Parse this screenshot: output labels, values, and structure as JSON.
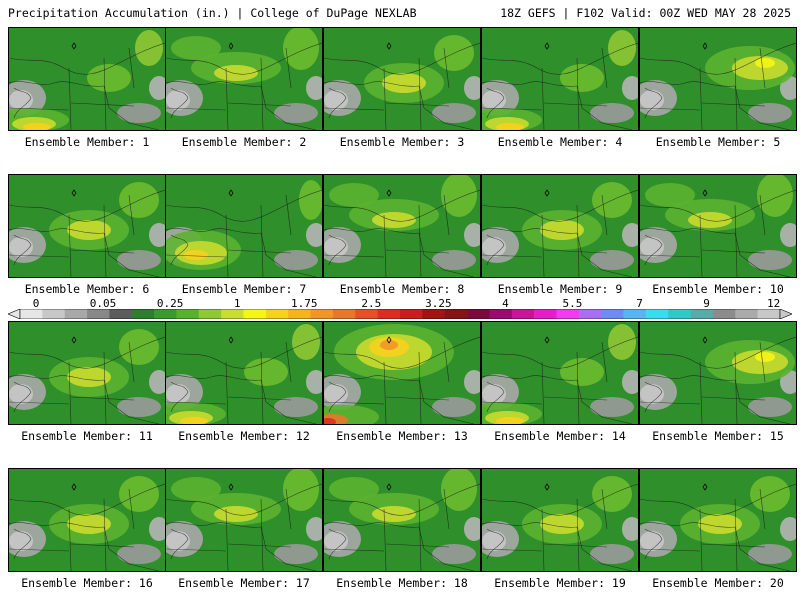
{
  "header": {
    "title_left": "Precipitation Accumulation (in.) | College of DuPage NEXLAB",
    "title_right": "18Z GEFS | F102 Valid: 00Z WED MAY 28 2025"
  },
  "colorbar": {
    "labels": [
      "0",
      "0.05",
      "0.25",
      "1",
      "1.75",
      "2.5",
      "3.25",
      "4",
      "5.5",
      "7",
      "9",
      "12"
    ],
    "colors": [
      "#e6e6e6",
      "#c8c8c8",
      "#a8a8a8",
      "#888888",
      "#5c5c5c",
      "#2f7d2f",
      "#3a9a30",
      "#58b02f",
      "#8ec835",
      "#c8dc32",
      "#f5f516",
      "#f5d21e",
      "#f5b41e",
      "#f09628",
      "#e6782d",
      "#e65028",
      "#dc2d23",
      "#c81e1e",
      "#a01414",
      "#821414",
      "#7a0a3c",
      "#9b0a6e",
      "#c81496",
      "#e61ec8",
      "#f03cf0",
      "#aa6ef0",
      "#6e8cf0",
      "#5ab4f0",
      "#3cdcf0",
      "#32c8c8",
      "#5aaaaa",
      "#8c8c8c",
      "#aaaaaa",
      "#c8c8c8"
    ]
  },
  "panels": [
    {
      "label": "Ensemble Member: 1",
      "wet": "south"
    },
    {
      "label": "Ensemble Member: 2",
      "wet": "north"
    },
    {
      "label": "Ensemble Member: 3",
      "wet": "center"
    },
    {
      "label": "Ensemble Member: 4",
      "wet": "south"
    },
    {
      "label": "Ensemble Member: 5",
      "wet": "northeast"
    },
    {
      "label": "Ensemble Member: 6",
      "wet": "center"
    },
    {
      "label": "Ensemble Member: 7",
      "wet": "southwest"
    },
    {
      "label": "Ensemble Member: 8",
      "wet": "north"
    },
    {
      "label": "Ensemble Member: 9",
      "wet": "center"
    },
    {
      "label": "Ensemble Member: 10",
      "wet": "north"
    },
    {
      "label": "Ensemble Member: 11",
      "wet": "center"
    },
    {
      "label": "Ensemble Member: 12",
      "wet": "south"
    },
    {
      "label": "Ensemble Member: 13",
      "wet": "heavy"
    },
    {
      "label": "Ensemble Member: 14",
      "wet": "south"
    },
    {
      "label": "Ensemble Member: 15",
      "wet": "northeast"
    },
    {
      "label": "Ensemble Member: 16",
      "wet": "center"
    },
    {
      "label": "Ensemble Member: 17",
      "wet": "north"
    },
    {
      "label": "Ensemble Member: 18",
      "wet": "north"
    },
    {
      "label": "Ensemble Member: 19",
      "wet": "center"
    },
    {
      "label": "Ensemble Member: 20",
      "wet": "center"
    }
  ]
}
